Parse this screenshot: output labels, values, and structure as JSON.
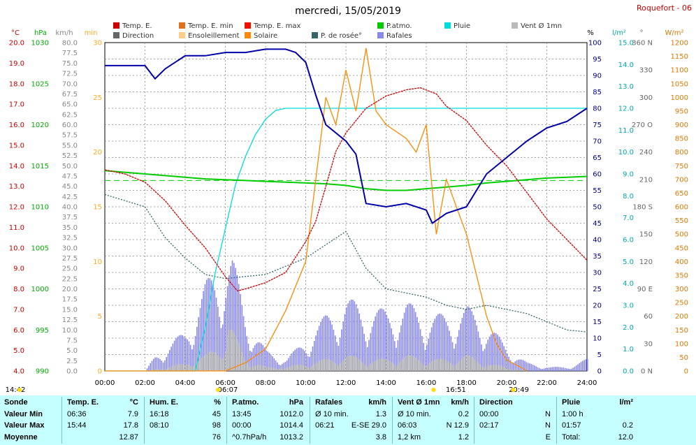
{
  "title": "mercredi, 15/05/2019",
  "site": "Roquefort - 06",
  "legend": [
    {
      "label": "Temp. E.",
      "color": "#cc0000"
    },
    {
      "label": "Temp. E. min",
      "color": "#e07020"
    },
    {
      "label": "Temp. E. max",
      "color": "#ee1100"
    },
    {
      "label": "P.atmo.",
      "color": "#00cc00"
    },
    {
      "label": "Pluie",
      "color": "#00dddd"
    },
    {
      "label": "Vent Ø 1mn",
      "color": "#bbbbbb"
    },
    {
      "label": "Direction",
      "color": "#666666"
    },
    {
      "label": "Ensoleillement",
      "color": "#ffcc88"
    },
    {
      "label": "Solaire",
      "color": "#ff8800"
    },
    {
      "label": "P. de rosée°",
      "color": "#336666"
    },
    {
      "label": "Rafales",
      "color": "#8888ee"
    }
  ],
  "units": {
    "temp": "°C",
    "pres": "hPa",
    "wind": "km/h",
    "min": "min",
    "hum": "%",
    "rain": "l/m²",
    "dir": "°",
    "sol": "W/m²"
  },
  "axes": {
    "temp": {
      "ticks": [
        "20.0",
        "19.0",
        "18.0",
        "17.0",
        "16.0",
        "15.0",
        "14.0",
        "13.0",
        "12.0",
        "11.0",
        "10.0",
        "9.0",
        "8.0",
        "7.0",
        "6.0",
        "5.0",
        "4.0"
      ],
      "color": "#cc0000"
    },
    "pres": {
      "ticks": [
        "1030",
        "1025",
        "1020",
        "1015",
        "1010",
        "1005",
        "1000",
        "995",
        "990"
      ],
      "color": "#00aa00"
    },
    "wind": {
      "ticks": [
        "80.0",
        "77.5",
        "75.0",
        "72.5",
        "70.0",
        "67.5",
        "65.0",
        "62.5",
        "60.0",
        "57.5",
        "55.0",
        "52.5",
        "50.0",
        "47.5",
        "45.0",
        "42.5",
        "40.0",
        "37.5",
        "35.0",
        "32.5",
        "30.0",
        "27.5",
        "25.0",
        "22.5",
        "20.0",
        "17.5",
        "15.0",
        "12.5",
        "10.0",
        "7.5",
        "5.0",
        "2.5",
        "0.0"
      ],
      "color": "#888888"
    },
    "mins": {
      "ticks": [
        "30",
        "25",
        "20",
        "15",
        "10",
        "5",
        "0"
      ],
      "color": "#ffaa22"
    },
    "hum": {
      "ticks": [
        "100",
        "95",
        "90",
        "85",
        "80",
        "75",
        "70",
        "65",
        "60",
        "55",
        "50",
        "45",
        "40",
        "35",
        "30",
        "25",
        "20",
        "15",
        "10",
        "5",
        "0"
      ],
      "color": "#000088"
    },
    "rain": {
      "ticks": [
        "15.0",
        "14.0",
        "13.0",
        "12.0",
        "11.0",
        "10.0",
        "9.0",
        "8.0",
        "7.0",
        "6.0",
        "5.0",
        "4.0",
        "3.0",
        "2.0",
        "1.0",
        "0.0"
      ],
      "color": "#00aaaa"
    },
    "dir": {
      "ticks": [
        "360 N",
        "330",
        "300",
        "270 O",
        "240",
        "210",
        "180 S",
        "150",
        "120",
        "90 E",
        "60",
        "30",
        "0 N"
      ],
      "color": "#666666"
    },
    "sol": {
      "ticks": [
        "1200",
        "1150",
        "1100",
        "1050",
        "1000",
        "950",
        "900",
        "850",
        "800",
        "750",
        "700",
        "650",
        "600",
        "550",
        "500",
        "450",
        "400",
        "350",
        "300",
        "250",
        "200",
        "150",
        "100",
        "50",
        "0"
      ],
      "color": "#dd7700"
    },
    "x": [
      "00:00",
      "02:00",
      "04:00",
      "06:00",
      "08:00",
      "10:00",
      "12:00",
      "14:00",
      "16:00",
      "18:00",
      "20:00",
      "22:00",
      "24:00"
    ]
  },
  "sun": {
    "sunrise_daylength": "14:42",
    "sunrise": "06:07",
    "transit": "16:51",
    "sunset": "20:49"
  },
  "chart_data": {
    "type": "line",
    "x_unit": "hour",
    "xlim": [
      0,
      24
    ],
    "series": [
      {
        "name": "Temp. E.",
        "unit": "°C",
        "ylim": [
          4,
          20
        ],
        "x": [
          0,
          1,
          2,
          3,
          4,
          5,
          6,
          6.6,
          7,
          8,
          9,
          10,
          10.5,
          11,
          11.5,
          12,
          12.5,
          13,
          14,
          15,
          15.7,
          16.5,
          17,
          18,
          19,
          20,
          21,
          22,
          23,
          24
        ],
        "values": [
          13.8,
          13.6,
          13.2,
          12.3,
          11.1,
          10.0,
          8.6,
          7.9,
          8.0,
          8.3,
          8.8,
          10.3,
          11.3,
          13.0,
          14.7,
          15.6,
          16.2,
          16.8,
          17.4,
          17.7,
          17.8,
          17.5,
          16.9,
          16.2,
          15.0,
          14.0,
          12.7,
          11.4,
          10.4,
          9.4
        ]
      },
      {
        "name": "Hum. E.",
        "unit": "%",
        "ylim": [
          0,
          100
        ],
        "x": [
          0,
          1,
          2,
          2.5,
          3,
          4,
          5,
          6,
          7,
          8,
          8.2,
          9,
          9.5,
          10,
          10.5,
          11,
          12,
          12.5,
          13,
          14,
          15,
          16,
          16.3,
          17,
          18,
          18.5,
          19,
          20,
          21,
          22,
          23,
          24
        ],
        "values": [
          93,
          93,
          93,
          89,
          92,
          96,
          96,
          97,
          97,
          98,
          98,
          98,
          97,
          94,
          84,
          75,
          70,
          66,
          51,
          50,
          51,
          49,
          45,
          48,
          50,
          55,
          60,
          65,
          70,
          74,
          76,
          80
        ]
      },
      {
        "name": "P.atmo.",
        "unit": "hPa",
        "ylim": [
          990,
          1030
        ],
        "x": [
          0,
          1,
          2,
          3,
          4,
          5,
          6,
          7,
          8,
          9,
          10,
          11,
          12,
          13,
          14,
          15,
          16,
          17,
          18,
          19,
          20,
          21,
          22,
          23,
          24
        ],
        "values": [
          1014.4,
          1014.2,
          1014.0,
          1013.8,
          1013.6,
          1013.4,
          1013.3,
          1013.2,
          1013.1,
          1013.0,
          1012.9,
          1012.8,
          1012.6,
          1012.2,
          1012.0,
          1012.0,
          1012.2,
          1012.4,
          1012.6,
          1012.9,
          1013.1,
          1013.3,
          1013.5,
          1013.6,
          1013.7
        ]
      },
      {
        "name": "Pluie",
        "unit": "l/m²",
        "ylim": [
          0,
          15
        ],
        "x": [
          0,
          4.5,
          5,
          5.5,
          6,
          6.5,
          7,
          7.5,
          8,
          8.5,
          9,
          9.5,
          10,
          24
        ],
        "values": [
          0,
          0,
          2,
          4.5,
          6.5,
          8.5,
          9.8,
          10.8,
          11.5,
          11.9,
          12.0,
          12.0,
          12.0,
          12.0
        ]
      },
      {
        "name": "Solaire",
        "unit": "W/m²",
        "ylim": [
          0,
          1200
        ],
        "x": [
          0,
          6,
          7,
          8,
          9,
          10,
          10.5,
          11,
          11.5,
          12,
          12.5,
          13,
          13.5,
          14,
          15,
          15.5,
          16,
          16.5,
          17,
          17.5,
          18,
          18.5,
          19,
          19.5,
          20,
          20.8,
          21
        ],
        "values": [
          0,
          0,
          30,
          80,
          220,
          400,
          700,
          1000,
          900,
          1100,
          950,
          1180,
          950,
          900,
          850,
          800,
          900,
          500,
          700,
          600,
          500,
          350,
          200,
          100,
          40,
          10,
          0
        ]
      },
      {
        "name": "P. de rosée°",
        "unit": "°C",
        "ylim": [
          4,
          20
        ],
        "x": [
          0,
          2,
          3,
          4,
          5,
          6,
          8,
          10,
          12,
          13,
          14,
          15,
          16,
          17,
          18,
          19,
          20,
          21,
          22,
          23,
          24
        ],
        "values": [
          12.6,
          12.0,
          10.5,
          9.5,
          8.7,
          8.5,
          8.7,
          9.5,
          10.8,
          9.0,
          8.0,
          7.8,
          7.6,
          7.2,
          7.0,
          7.2,
          7.0,
          6.8,
          6.4,
          6.0,
          5.9
        ]
      },
      {
        "name": "Rafales",
        "unit": "km/h",
        "ylim": [
          0,
          80
        ],
        "x": [
          0,
          2,
          2.5,
          3,
          4,
          5,
          6,
          6.3,
          7,
          8,
          9,
          10,
          11,
          12,
          13,
          14,
          15,
          16,
          17,
          18,
          19,
          20,
          21,
          22,
          23,
          24
        ],
        "values": [
          0,
          0,
          4,
          6,
          10,
          22,
          28,
          29,
          14,
          5,
          3,
          8,
          14,
          18,
          16,
          15,
          17,
          14,
          14,
          16,
          12,
          6,
          2,
          1,
          1,
          3
        ]
      },
      {
        "name": "Vent Ø 1mn",
        "unit": "km/h",
        "ylim": [
          0,
          80
        ],
        "x": [
          0,
          2,
          3,
          4,
          5,
          6,
          6.1,
          7,
          8,
          9,
          10,
          11,
          12,
          13,
          14,
          15,
          16,
          17,
          18,
          19,
          20,
          21,
          22,
          23,
          24
        ],
        "values": [
          0,
          0,
          1,
          2,
          4,
          8,
          12.9,
          3,
          1,
          1,
          2,
          3,
          4,
          3,
          3,
          4,
          3,
          3,
          4,
          2,
          1,
          0,
          0,
          0,
          0
        ]
      }
    ]
  },
  "table": {
    "cols": [
      {
        "head": [
          "Sonde",
          ""
        ],
        "rows": [
          [
            "Valeur Min",
            ""
          ],
          [
            "Valeur Max",
            ""
          ],
          [
            "Moyenne",
            ""
          ]
        ]
      },
      {
        "head": [
          "Temp. E.",
          "°C"
        ],
        "rows": [
          [
            "06:36",
            "7.9"
          ],
          [
            "15:44",
            "17.8"
          ],
          [
            "",
            "12.87"
          ]
        ]
      },
      {
        "head": [
          "Hum. E.",
          "%"
        ],
        "rows": [
          [
            "16:18",
            "45"
          ],
          [
            "08:10",
            "98"
          ],
          [
            "",
            "76"
          ]
        ]
      },
      {
        "head": [
          "P.atmo.",
          "hPa"
        ],
        "rows": [
          [
            "13:45",
            "1012.0"
          ],
          [
            "00:00",
            "1014.4"
          ],
          [
            "^0.7hPa/h",
            "1013.2"
          ]
        ]
      },
      {
        "head": [
          "Rafales",
          "km/h"
        ],
        "rows": [
          [
            "Ø 10 min.",
            "1.3"
          ],
          [
            "06:21",
            "E-SE 29.0"
          ],
          [
            "",
            "3.8"
          ]
        ]
      },
      {
        "head": [
          "Vent Ø 1mn",
          "km/h"
        ],
        "rows": [
          [
            "Ø 10 min.",
            "0.2"
          ],
          [
            "06:03",
            "N 12.9"
          ],
          [
            "1,2 km",
            "1.2"
          ]
        ]
      },
      {
        "head": [
          "Direction",
          ""
        ],
        "rows": [
          [
            "00:00",
            "N"
          ],
          [
            "02:17",
            "N"
          ],
          [
            "",
            "E"
          ]
        ]
      },
      {
        "head": [
          "Pluie",
          "l/m²"
        ],
        "rows": [
          [
            "1:00 h",
            ""
          ],
          [
            "01:57",
            "0.2"
          ],
          [
            "Total:",
            "12.0"
          ]
        ]
      }
    ]
  }
}
